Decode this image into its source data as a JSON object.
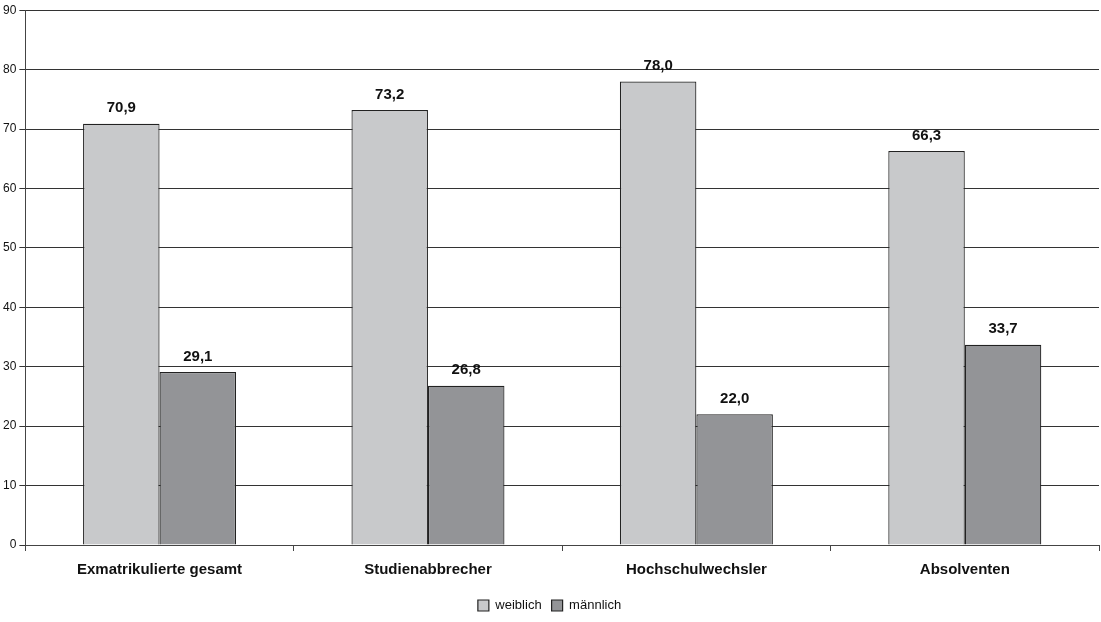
{
  "chart_data": {
    "type": "bar",
    "categories": [
      "Exmatrikulierte gesamt",
      "Studienabbrecher",
      "Hochschulwechsler",
      "Absolventen"
    ],
    "series": [
      {
        "name": "weiblich",
        "color": "#c8c9cb",
        "values": [
          70.9,
          73.2,
          78.0,
          66.3
        ],
        "value_labels": [
          "70,9",
          "73,2",
          "78,0",
          "66,3"
        ]
      },
      {
        "name": "männlich",
        "color": "#939497",
        "values": [
          29.1,
          26.8,
          22.0,
          33.7
        ],
        "value_labels": [
          "29,1",
          "26,8",
          "22,0",
          "33,7"
        ]
      }
    ],
    "ylim": [
      0,
      90
    ],
    "yticks": [
      0,
      10,
      20,
      30,
      40,
      50,
      60,
      70,
      80,
      90
    ],
    "grid": "y",
    "legend": "bottom"
  }
}
